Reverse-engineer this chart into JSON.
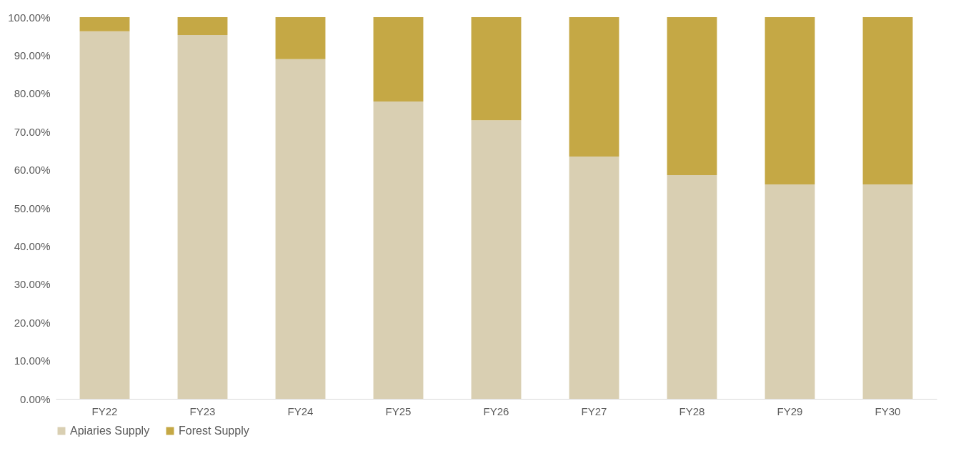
{
  "chart_data": {
    "type": "bar",
    "stacked": true,
    "categories": [
      "FY22",
      "FY23",
      "FY24",
      "FY25",
      "FY26",
      "FY27",
      "FY28",
      "FY29",
      "FY30"
    ],
    "series": [
      {
        "name": "Apiaries Supply",
        "color": "#d9cfb2",
        "values": [
          96.3,
          95.3,
          89.0,
          77.9,
          73.0,
          63.5,
          58.6,
          56.2,
          56.2
        ]
      },
      {
        "name": "Forest Supply",
        "color": "#c5a845",
        "values": [
          3.7,
          4.7,
          11.0,
          22.1,
          27.0,
          36.5,
          41.4,
          43.8,
          43.8
        ]
      }
    ],
    "ylim": [
      0,
      100
    ],
    "yticks": [
      {
        "value": 0,
        "label": "0.00%"
      },
      {
        "value": 10,
        "label": "10.00%"
      },
      {
        "value": 20,
        "label": "20.00%"
      },
      {
        "value": 30,
        "label": "30.00%"
      },
      {
        "value": 40,
        "label": "40.00%"
      },
      {
        "value": 50,
        "label": "50.00%"
      },
      {
        "value": 60,
        "label": "60.00%"
      },
      {
        "value": 70,
        "label": "70.00%"
      },
      {
        "value": 80,
        "label": "80.00%"
      },
      {
        "value": 90,
        "label": "90.00%"
      },
      {
        "value": 100,
        "label": "100.00%"
      }
    ],
    "grid": false,
    "legend": "bottom"
  }
}
